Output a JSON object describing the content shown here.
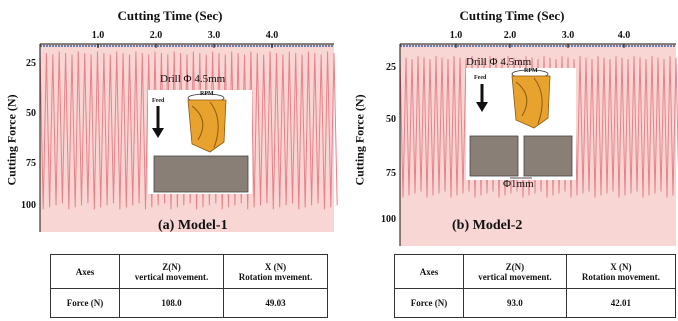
{
  "chart_data": [
    {
      "type": "line",
      "panel_label": "(a)  Model-1",
      "xlabel": "Cutting  Time (Sec)",
      "ylabel": "Cutting  Force  (N)",
      "x_ticks": [
        "1.0",
        "2.0",
        "3.0",
        "4.0"
      ],
      "y_ticks": [
        "25",
        "50",
        "75",
        "100"
      ],
      "inset": {
        "drill_label": "Drill Φ 4.5mm",
        "feed_label": "Feed",
        "rpm_label": "RPM"
      },
      "table": {
        "headers": [
          "Axes",
          "Z(N)\nvertical movement.",
          "X (N)\nRotation mvement."
        ],
        "rows": [
          [
            "Force (N)",
            "108.0",
            "49.03"
          ]
        ]
      },
      "colors": {
        "signal": "#e8818a",
        "fill": "#f7d6d3",
        "drill": "#e8a22e",
        "workpiece": "#8a7f77"
      }
    },
    {
      "type": "line",
      "panel_label": "(b) Model-2",
      "xlabel": "Cutting  Time (Sec)",
      "ylabel": "Cutting  Force  (N)",
      "x_ticks": [
        "1.0",
        "2.0",
        "3.0",
        "4.0"
      ],
      "y_ticks": [
        "25",
        "50",
        "75",
        "100"
      ],
      "inset": {
        "drill_label": "Drill Φ 4.5mm",
        "feed_label": "Feed",
        "rpm_label": "RPM",
        "gap_label": "Φ1mm"
      },
      "table": {
        "headers": [
          "Axes",
          "Z(N)\nvertical movement.",
          "X (N)\nRotation  movement."
        ],
        "rows": [
          [
            "Force (N)",
            "93.0",
            "42.01"
          ]
        ]
      },
      "colors": {
        "signal": "#e8818a",
        "fill": "#f7d6d3",
        "drill": "#e8a22e",
        "workpiece": "#8a7f77"
      }
    }
  ]
}
